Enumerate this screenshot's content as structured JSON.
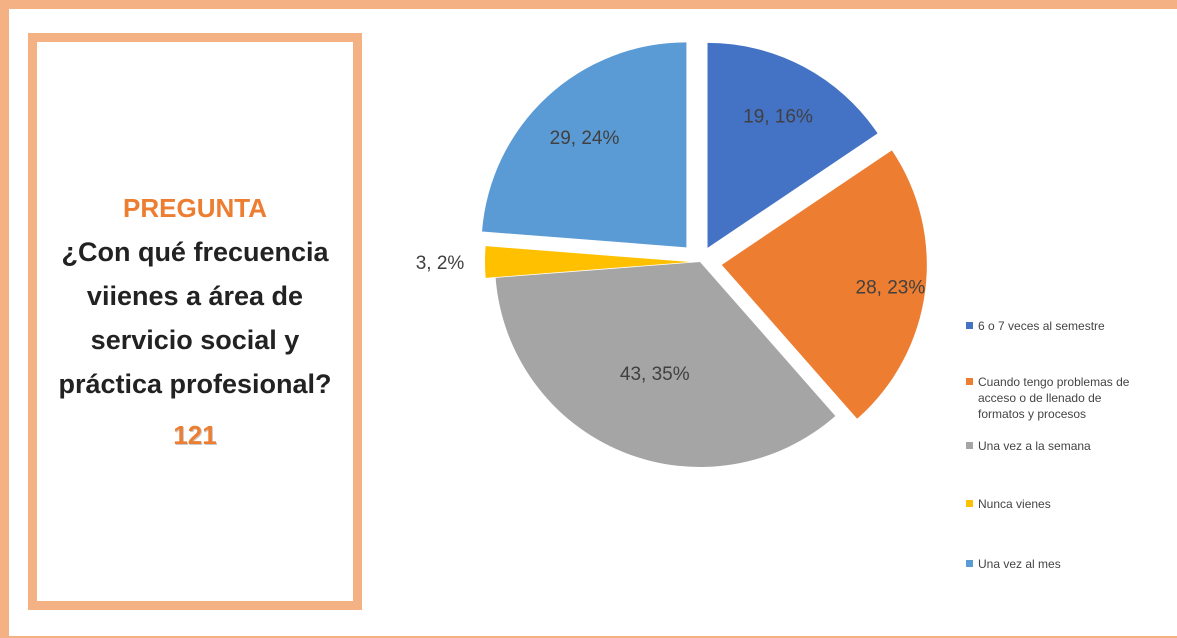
{
  "panel": {
    "label": "PREGUNTA",
    "question": "¿Con qué frecuencia viienes a área de servicio social y práctica profesional?",
    "total": "121"
  },
  "chart_data": {
    "type": "pie",
    "title": "",
    "slices": [
      {
        "name": "6 o 7 veces al semestre",
        "value": 19,
        "percent": 16,
        "label": "19, 16%",
        "color": "#4472c4"
      },
      {
        "name": "Cuando tengo problemas de acceso o de llenado de formatos y procesos",
        "value": 28,
        "percent": 23,
        "label": "28, 23%",
        "color": "#ed7d31"
      },
      {
        "name": "Una vez a la semana",
        "value": 43,
        "percent": 35,
        "label": "43, 35%",
        "color": "#a5a5a5"
      },
      {
        "name": "Nunca vienes",
        "value": 3,
        "percent": 2,
        "label": "3, 2%",
        "color": "#ffc000"
      },
      {
        "name": "Una vez al mes",
        "value": 29,
        "percent": 24,
        "label": "29, 24%",
        "color": "#5b9bd5"
      }
    ],
    "legend_position": "right"
  }
}
